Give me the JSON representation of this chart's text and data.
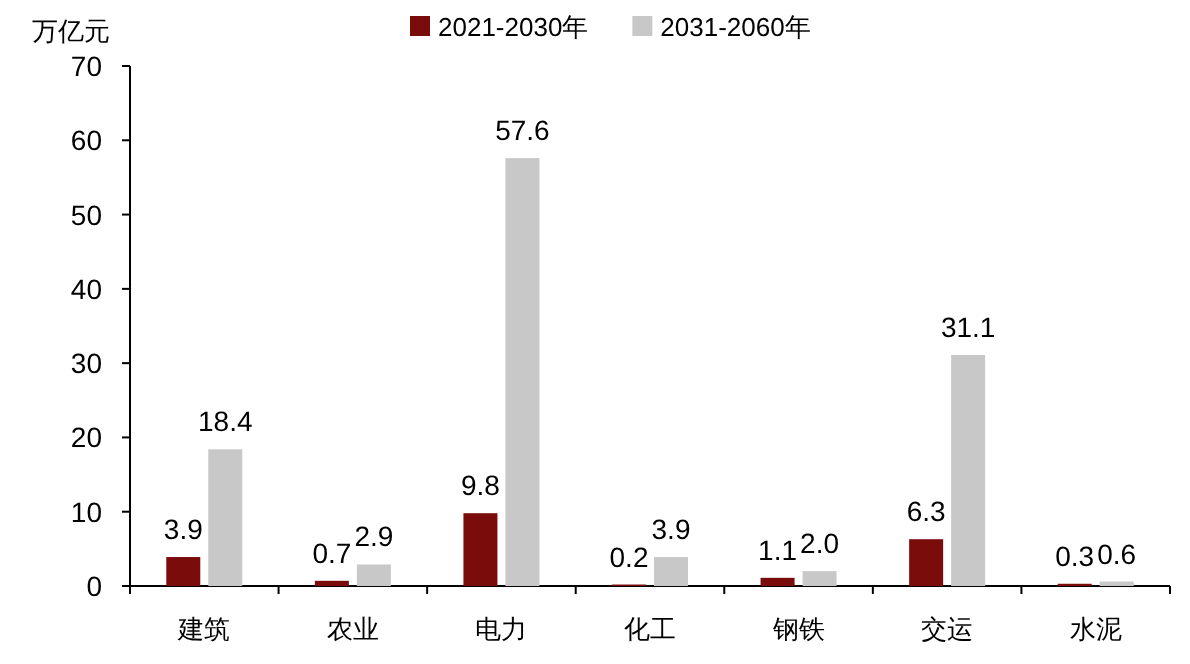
{
  "chart_data": {
    "type": "bar",
    "ylabel": "万亿元",
    "categories": [
      "建筑",
      "农业",
      "电力",
      "化工",
      "钢铁",
      "交运",
      "水泥"
    ],
    "series": [
      {
        "name": "2021-2030年",
        "color": "#7b0c0c",
        "values": [
          3.9,
          0.7,
          9.8,
          0.2,
          1.1,
          6.3,
          0.3
        ],
        "value_labels": [
          "3.9",
          "0.7",
          "9.8",
          "0.2",
          "1.1",
          "6.3",
          "0.3"
        ]
      },
      {
        "name": "2031-2060年",
        "color": "#c8c8c8",
        "values": [
          18.4,
          2.9,
          57.6,
          3.9,
          2.0,
          31.1,
          0.6
        ],
        "value_labels": [
          "18.4",
          "2.9",
          "57.6",
          "3.9",
          "2.0",
          "31.1",
          "0.6"
        ]
      }
    ],
    "ylim": [
      0,
      70
    ],
    "yticks": [
      0,
      10,
      20,
      30,
      40,
      50,
      60,
      70
    ],
    "legend": "top",
    "grid": false
  }
}
